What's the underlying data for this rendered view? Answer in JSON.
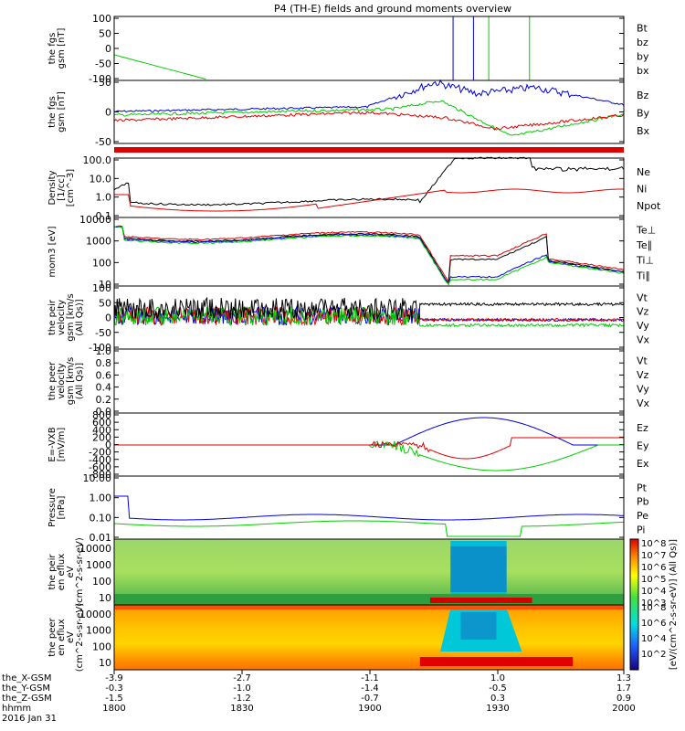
{
  "title": "P4 (TH-E) fields and ground moments overview",
  "footer": {
    "date": "2016 Jan 31",
    "row_labels": [
      "the_X-GSM",
      "the_Y-GSM",
      "the_Z-GSM",
      "hhmm"
    ],
    "rows": [
      [
        "-3.9",
        "-2.7",
        "-1.1",
        "1.0",
        "1.3"
      ],
      [
        "-0.3",
        "-1.0",
        "-1.4",
        "-0.5",
        "1.7"
      ],
      [
        "-1.5",
        "-1.2",
        "-0.7",
        "0.3",
        "0.9"
      ],
      [
        "1800",
        "1830",
        "1900",
        "1930",
        "2000"
      ]
    ]
  },
  "colors": {
    "black": "#000000",
    "red": "#dd0000",
    "green": "#00cc00",
    "blue": "#0000dd"
  },
  "colorbar": {
    "label": "[eV/(cm^2-s-sr-eV)] (All Qs)]",
    "ticks_top": [
      "10^8",
      "10^7",
      "10^6",
      "10^5",
      "10^4",
      "10^3"
    ],
    "ticks_bottom": [
      "10^8",
      "10^6",
      "10^4",
      "10^2"
    ]
  },
  "chart_data": [
    {
      "type": "line",
      "ylabel": "the fgs gsm [nT]",
      "yticks": [
        "100",
        "50",
        "0",
        "-50",
        "-100"
      ],
      "ylim": [
        -100,
        100
      ],
      "legend": [
        "Bt",
        "bz",
        "by",
        "bx"
      ]
    },
    {
      "type": "line",
      "ylabel": "the fgs gsm [nT]",
      "yticks": [
        "50",
        "0",
        "-50"
      ],
      "ylim": [
        -85,
        85
      ],
      "legend": [
        "Bz",
        "By",
        "Bx"
      ]
    },
    {
      "type": "line",
      "ylabel": "Density [1/cc] [cm^-3]",
      "yticks": [
        "100.0",
        "10.0",
        "1.0",
        "0.1"
      ],
      "scale": "log",
      "legend": [
        "Ne",
        "Ni",
        "Npot"
      ]
    },
    {
      "type": "line",
      "ylabel": "mom3 [eV]",
      "yticks": [
        "10000",
        "1000",
        "100",
        "10"
      ],
      "scale": "log",
      "legend": [
        "Te⊥",
        "Te∥",
        "Ti⊥",
        "Ti∥"
      ]
    },
    {
      "type": "line",
      "ylabel": "the peir velocity gsm [km/s (All Qs)]",
      "yticks": [
        "100",
        "50",
        "0",
        "-50",
        "-100"
      ],
      "ylim": [
        -100,
        100
      ],
      "legend": [
        "Vt",
        "Vz",
        "Vy",
        "Vx"
      ]
    },
    {
      "type": "line",
      "ylabel": "the peer velocity gsm [km/s (All Qs)]",
      "yticks": [
        "1.0",
        "0.8",
        "0.6",
        "0.4",
        "0.2",
        "0.0"
      ],
      "ylim": [
        0,
        1
      ],
      "legend": [
        "Vt",
        "Vz",
        "Vy",
        "Vx"
      ]
    },
    {
      "type": "line",
      "ylabel": "E=-VXB [mV/m]",
      "yticks": [
        "800",
        "600",
        "400",
        "200",
        "0",
        "-200",
        "-400",
        "-600",
        "-800"
      ],
      "ylim": [
        -800,
        800
      ],
      "legend": [
        "Ez",
        "Ey",
        "Ex"
      ]
    },
    {
      "type": "line",
      "ylabel": "Pressure [nPa]",
      "yticks": [
        "10.00",
        "1.00",
        "0.10",
        "0.01"
      ],
      "scale": "log",
      "legend": [
        "Pt",
        "Pb",
        "Pe",
        "Pi"
      ]
    },
    {
      "type": "heatmap",
      "ylabel": "the peir en eflux eV (cm^2-s-sr-eV)",
      "yticks": [
        "10000",
        "1000",
        "100",
        "10"
      ]
    },
    {
      "type": "heatmap",
      "ylabel": "the peer en eflux eV (cm^2-s-sr-eV)",
      "yticks": [
        "10000",
        "1000",
        "100",
        "10"
      ]
    }
  ]
}
